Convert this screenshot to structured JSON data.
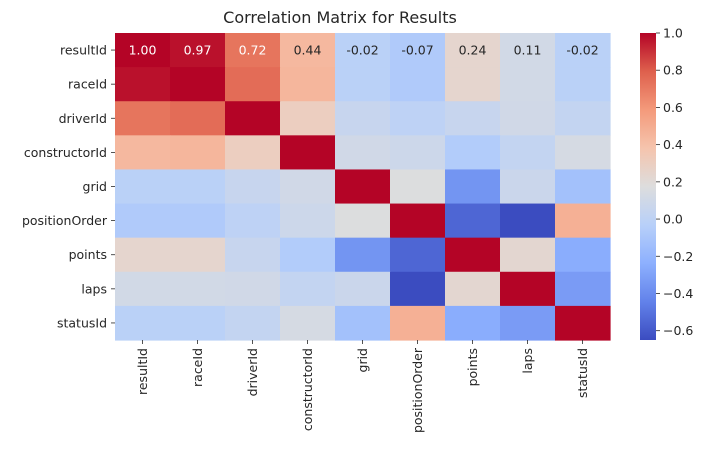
{
  "chart_data": {
    "type": "heatmap",
    "title": "Correlation Matrix for Results",
    "xlabel": "",
    "ylabel": "",
    "labels": [
      "resultId",
      "raceId",
      "driverId",
      "constructorId",
      "grid",
      "positionOrder",
      "points",
      "laps",
      "statusId"
    ],
    "matrix": [
      [
        1.0,
        0.97,
        0.72,
        0.44,
        -0.02,
        -0.07,
        0.24,
        0.11,
        -0.02
      ],
      [
        0.97,
        1.0,
        0.75,
        0.45,
        -0.02,
        -0.07,
        0.24,
        0.11,
        -0.02
      ],
      [
        0.72,
        0.75,
        1.0,
        0.3,
        0.05,
        0.0,
        0.05,
        0.1,
        0.03
      ],
      [
        0.44,
        0.45,
        0.3,
        1.0,
        0.1,
        0.08,
        -0.06,
        0.03,
        0.13
      ],
      [
        -0.02,
        -0.02,
        0.05,
        0.1,
        1.0,
        0.17,
        -0.36,
        0.07,
        -0.13
      ],
      [
        -0.07,
        -0.07,
        0.0,
        0.08,
        0.17,
        1.0,
        -0.55,
        -0.65,
        0.48
      ],
      [
        0.24,
        0.24,
        0.05,
        -0.06,
        -0.36,
        -0.55,
        1.0,
        0.23,
        -0.25
      ],
      [
        0.11,
        0.11,
        0.1,
        0.03,
        0.07,
        -0.65,
        0.23,
        1.0,
        -0.33
      ],
      [
        -0.02,
        -0.02,
        0.03,
        0.13,
        -0.13,
        0.48,
        -0.25,
        -0.33,
        1.0
      ]
    ],
    "annotated_row": 0,
    "annotations": [
      "1.00",
      "0.97",
      "0.72",
      "0.44",
      "-0.02",
      "-0.07",
      "0.24",
      "0.11",
      "-0.02"
    ],
    "colormap": "coolwarm",
    "vmin": -0.65,
    "vmax": 1.0,
    "colorbar_ticks": [
      1.0,
      0.8,
      0.6,
      0.4,
      0.2,
      0.0,
      -0.2,
      -0.4,
      -0.6
    ],
    "colorbar_tick_labels": [
      "1.0",
      "0.8",
      "0.6",
      "0.4",
      "0.2",
      "0.0",
      "−0.2",
      "−0.4",
      "−0.6"
    ],
    "grid": false,
    "legend": "colorbar-right"
  }
}
